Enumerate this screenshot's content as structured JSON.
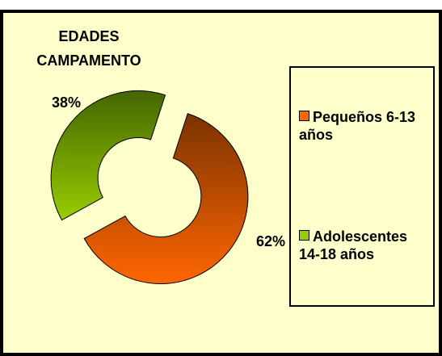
{
  "chart_data": {
    "type": "doughnut",
    "title": [
      "EDADES",
      "CAMPAMENTO"
    ],
    "categories": [
      "Pequeños 6-13 años",
      "Adolescentes 14-18 años"
    ],
    "values": [
      62,
      38
    ],
    "value_labels": [
      "62%",
      "38%"
    ],
    "colors": [
      "#FF6600",
      "#99CC00"
    ]
  }
}
